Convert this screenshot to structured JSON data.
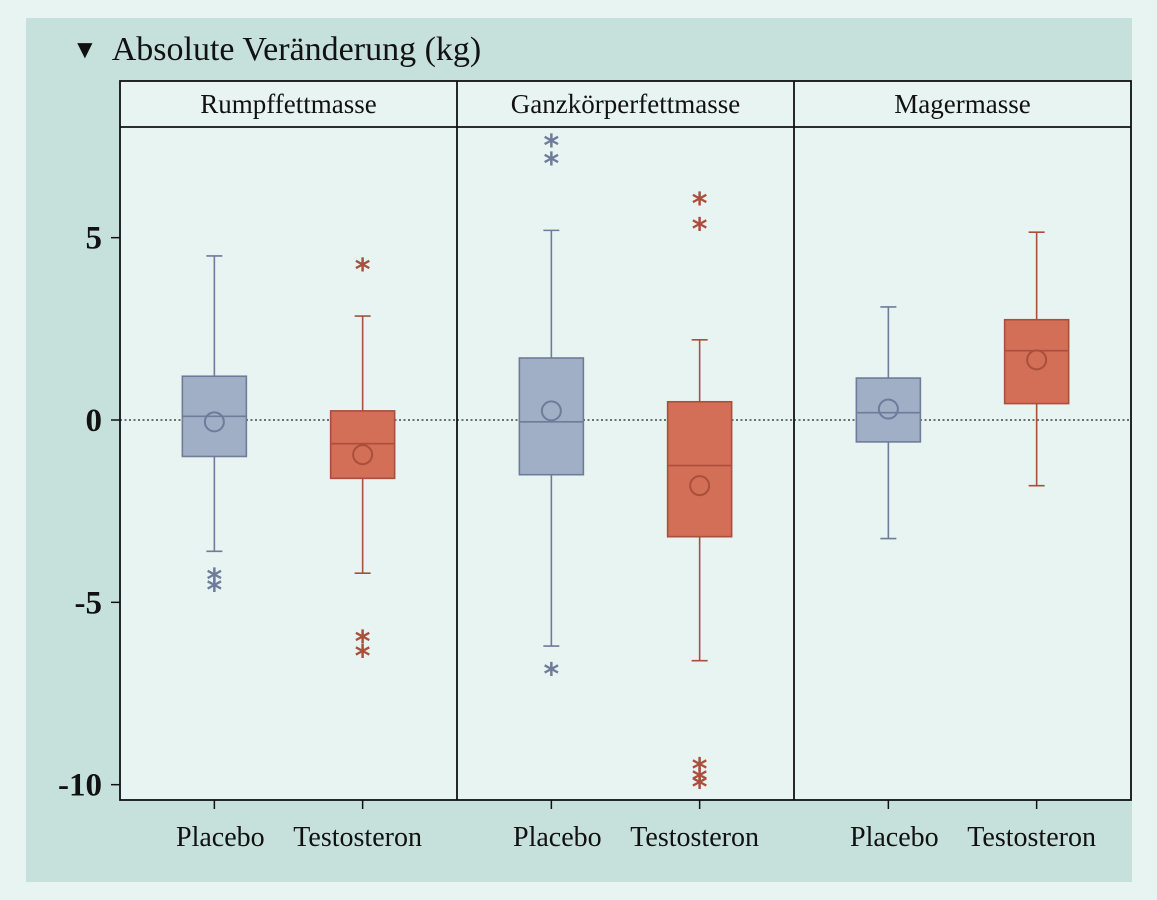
{
  "title": {
    "marker": "▼",
    "text": "Absolute Veränderung (kg)"
  },
  "colors": {
    "placebo_fill": "#a1afc6",
    "placebo_stroke": "#6e7b9a",
    "testo_fill": "#d36e57",
    "testo_stroke": "#a94f3c",
    "panel_bg": "#e8f4f1"
  },
  "chart_data": [
    {
      "type": "box",
      "title": "Rumpffettmasse",
      "categories": [
        "Placebo",
        "Testosteron"
      ],
      "boxes": [
        {
          "name": "Placebo",
          "whisker_low": -3.6,
          "q1": -1.0,
          "median": 0.1,
          "q3": 1.2,
          "whisker_high": 4.5,
          "mean": -0.05,
          "outliers": [
            -4.3,
            -4.6
          ]
        },
        {
          "name": "Testosteron",
          "whisker_low": -4.2,
          "q1": -1.6,
          "median": -0.65,
          "q3": 0.25,
          "whisker_high": 2.85,
          "mean": -0.95,
          "outliers": [
            4.2,
            -6.0,
            -6.4
          ]
        }
      ],
      "ylim": [
        -10.4,
        8.0
      ],
      "yticks": [
        5,
        0,
        -5,
        -10
      ],
      "reference_line": 0
    },
    {
      "type": "box",
      "title": "Ganzkörperfettmasse",
      "categories": [
        "Placebo",
        "Testosteron"
      ],
      "boxes": [
        {
          "name": "Placebo",
          "whisker_low": -6.2,
          "q1": -1.5,
          "median": -0.05,
          "q3": 1.7,
          "whisker_high": 5.2,
          "mean": 0.25,
          "outliers": [
            7.6,
            7.1,
            -6.9
          ]
        },
        {
          "name": "Testosteron",
          "whisker_low": -6.6,
          "q1": -3.2,
          "median": -1.25,
          "q3": 0.5,
          "whisker_high": 2.2,
          "mean": -1.8,
          "outliers": [
            6.0,
            5.3,
            -9.5,
            -9.8,
            -10.0
          ]
        }
      ],
      "ylim": [
        -10.4,
        8.0
      ],
      "reference_line": 0
    },
    {
      "type": "box",
      "title": "Magermasse",
      "categories": [
        "Placebo",
        "Testosteron"
      ],
      "boxes": [
        {
          "name": "Placebo",
          "whisker_low": -3.25,
          "q1": -0.6,
          "median": 0.2,
          "q3": 1.15,
          "whisker_high": 3.1,
          "mean": 0.3,
          "outliers": []
        },
        {
          "name": "Testosteron",
          "whisker_low": -1.8,
          "q1": 0.45,
          "median": 1.9,
          "q3": 2.75,
          "whisker_high": 5.15,
          "mean": 1.65,
          "outliers": []
        }
      ],
      "ylim": [
        -10.4,
        8.0
      ],
      "reference_line": 0
    }
  ]
}
